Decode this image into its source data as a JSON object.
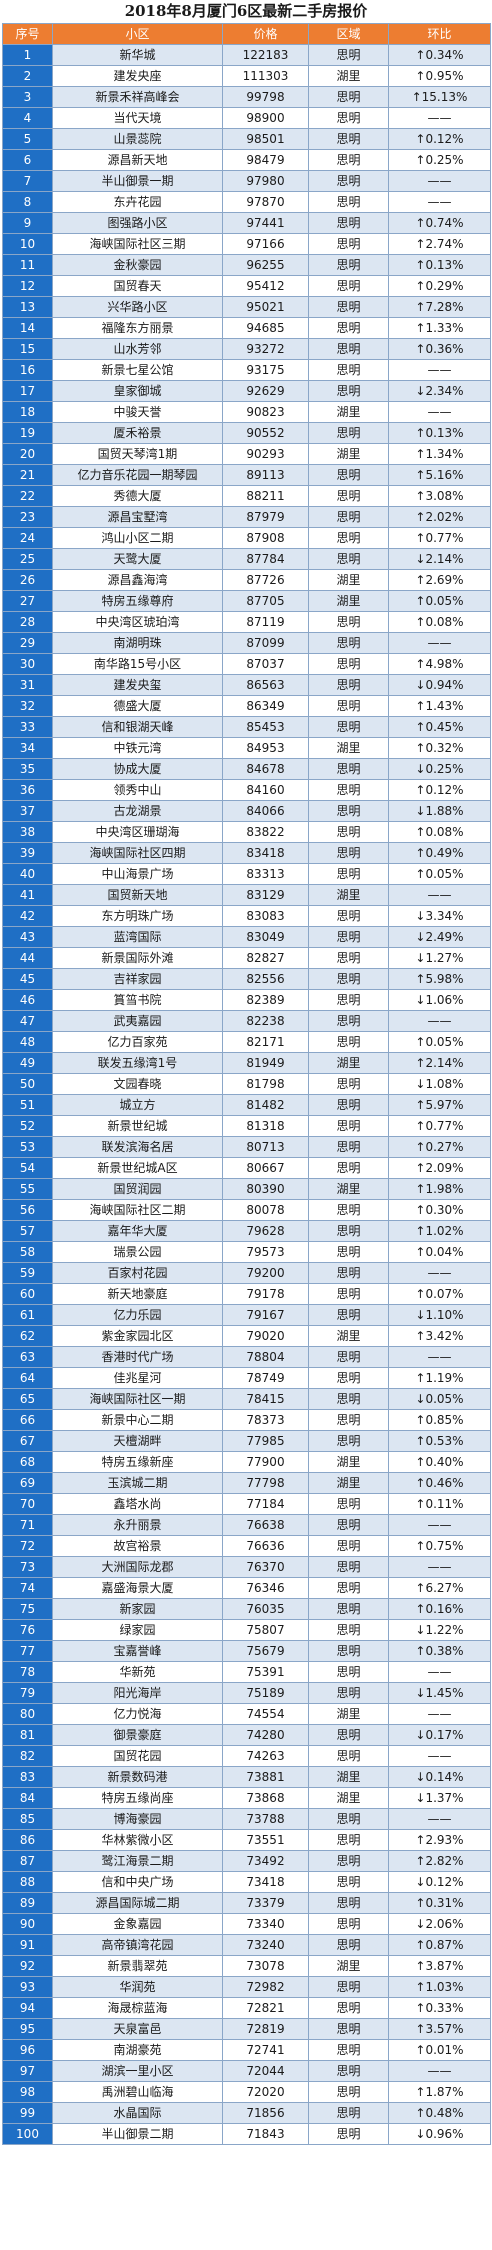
{
  "title": "2018年8月厦门6区最新二手房报价",
  "headers": [
    "序号",
    "小区",
    "价格",
    "区域",
    "环比"
  ],
  "rows": [
    [
      "1",
      "新华城",
      "122183",
      "思明",
      "↑0.34%"
    ],
    [
      "2",
      "建发央座",
      "111303",
      "湖里",
      "↑0.95%"
    ],
    [
      "3",
      "新景禾祥高峰会",
      "99798",
      "思明",
      "↑15.13%"
    ],
    [
      "4",
      "当代天境",
      "98900",
      "思明",
      "——"
    ],
    [
      "5",
      "山景蕊院",
      "98501",
      "思明",
      "↑0.12%"
    ],
    [
      "6",
      "源昌新天地",
      "98479",
      "思明",
      "↑0.25%"
    ],
    [
      "7",
      "半山御景一期",
      "97980",
      "思明",
      "——"
    ],
    [
      "8",
      "东卉花园",
      "97870",
      "思明",
      "——"
    ],
    [
      "9",
      "图强路小区",
      "97441",
      "思明",
      "↑0.74%"
    ],
    [
      "10",
      "海峡国际社区三期",
      "97166",
      "思明",
      "↑2.74%"
    ],
    [
      "11",
      "金秋豪园",
      "96255",
      "思明",
      "↑0.13%"
    ],
    [
      "12",
      "国贸春天",
      "95412",
      "思明",
      "↑0.29%"
    ],
    [
      "13",
      "兴华路小区",
      "95021",
      "思明",
      "↑7.28%"
    ],
    [
      "14",
      "福隆东方丽景",
      "94685",
      "思明",
      "↑1.33%"
    ],
    [
      "15",
      "山水芳邻",
      "93272",
      "思明",
      "↑0.36%"
    ],
    [
      "16",
      "新景七星公馆",
      "93175",
      "思明",
      "——"
    ],
    [
      "17",
      "皇家御城",
      "92629",
      "思明",
      "↓2.34%"
    ],
    [
      "18",
      "中骏天誉",
      "90823",
      "湖里",
      "——"
    ],
    [
      "19",
      "厦禾裕景",
      "90552",
      "思明",
      "↑0.13%"
    ],
    [
      "20",
      "国贸天琴湾1期",
      "90293",
      "湖里",
      "↑1.34%"
    ],
    [
      "21",
      "亿力音乐花园一期琴园",
      "89113",
      "思明",
      "↑5.16%"
    ],
    [
      "22",
      "秀德大厦",
      "88211",
      "思明",
      "↑3.08%"
    ],
    [
      "23",
      "源昌宝墅湾",
      "87979",
      "思明",
      "↑2.02%"
    ],
    [
      "24",
      "鸿山小区二期",
      "87908",
      "思明",
      "↑0.77%"
    ],
    [
      "25",
      "天鹭大厦",
      "87784",
      "思明",
      "↓2.14%"
    ],
    [
      "26",
      "源昌鑫海湾",
      "87726",
      "湖里",
      "↑2.69%"
    ],
    [
      "27",
      "特房五缘尊府",
      "87705",
      "湖里",
      "↑0.05%"
    ],
    [
      "28",
      "中央湾区琥珀湾",
      "87119",
      "思明",
      "↑0.08%"
    ],
    [
      "29",
      "南湖明珠",
      "87099",
      "思明",
      "——"
    ],
    [
      "30",
      "南华路15号小区",
      "87037",
      "思明",
      "↑4.98%"
    ],
    [
      "31",
      "建发央玺",
      "86563",
      "思明",
      "↓0.94%"
    ],
    [
      "32",
      "德盛大厦",
      "86349",
      "思明",
      "↑1.43%"
    ],
    [
      "33",
      "信和银湖天峰",
      "85453",
      "思明",
      "↑0.45%"
    ],
    [
      "34",
      "中铁元湾",
      "84953",
      "湖里",
      "↑0.32%"
    ],
    [
      "35",
      "协成大厦",
      "84678",
      "思明",
      "↓0.25%"
    ],
    [
      "36",
      "领秀中山",
      "84160",
      "思明",
      "↑0.12%"
    ],
    [
      "37",
      "古龙湖景",
      "84066",
      "思明",
      "↓1.88%"
    ],
    [
      "38",
      "中央湾区珊瑚海",
      "83822",
      "思明",
      "↑0.08%"
    ],
    [
      "39",
      "海峡国际社区四期",
      "83418",
      "思明",
      "↑0.49%"
    ],
    [
      "40",
      "中山海景广场",
      "83313",
      "思明",
      "↑0.05%"
    ],
    [
      "41",
      "国贸新天地",
      "83129",
      "湖里",
      "——"
    ],
    [
      "42",
      "东方明珠广场",
      "83083",
      "思明",
      "↓3.34%"
    ],
    [
      "43",
      "蓝湾国际",
      "83049",
      "思明",
      "↓2.49%"
    ],
    [
      "44",
      "新景国际外滩",
      "82827",
      "思明",
      "↓1.27%"
    ],
    [
      "45",
      "吉祥家园",
      "82556",
      "思明",
      "↑5.98%"
    ],
    [
      "46",
      "篔筜书院",
      "82389",
      "思明",
      "↓1.06%"
    ],
    [
      "47",
      "武夷嘉园",
      "82238",
      "思明",
      "——"
    ],
    [
      "48",
      "亿力百家苑",
      "82171",
      "思明",
      "↑0.05%"
    ],
    [
      "49",
      "联发五缘湾1号",
      "81949",
      "湖里",
      "↑2.14%"
    ],
    [
      "50",
      "文园春晓",
      "81798",
      "思明",
      "↓1.08%"
    ],
    [
      "51",
      "城立方",
      "81482",
      "思明",
      "↑5.97%"
    ],
    [
      "52",
      "新景世纪城",
      "81318",
      "思明",
      "↑0.77%"
    ],
    [
      "53",
      "联发滨海名居",
      "80713",
      "思明",
      "↑0.27%"
    ],
    [
      "54",
      "新景世纪城A区",
      "80667",
      "思明",
      "↑2.09%"
    ],
    [
      "55",
      "国贸润园",
      "80390",
      "湖里",
      "↑1.98%"
    ],
    [
      "56",
      "海峡国际社区二期",
      "80078",
      "思明",
      "↑0.30%"
    ],
    [
      "57",
      "嘉年华大厦",
      "79628",
      "思明",
      "↑1.02%"
    ],
    [
      "58",
      "瑞景公园",
      "79573",
      "思明",
      "↑0.04%"
    ],
    [
      "59",
      "百家村花园",
      "79200",
      "思明",
      "——"
    ],
    [
      "60",
      "新天地豪庭",
      "79178",
      "思明",
      "↑0.07%"
    ],
    [
      "61",
      "亿力乐园",
      "79167",
      "思明",
      "↓1.10%"
    ],
    [
      "62",
      "紫金家园北区",
      "79020",
      "湖里",
      "↑3.42%"
    ],
    [
      "63",
      "香港时代广场",
      "78804",
      "思明",
      "——"
    ],
    [
      "64",
      "佳兆星河",
      "78749",
      "思明",
      "↑1.19%"
    ],
    [
      "65",
      "海峡国际社区一期",
      "78415",
      "思明",
      "↓0.05%"
    ],
    [
      "66",
      "新景中心二期",
      "78373",
      "思明",
      "↑0.85%"
    ],
    [
      "67",
      "天檀湖畔",
      "77985",
      "思明",
      "↑0.53%"
    ],
    [
      "68",
      "特房五缘新座",
      "77900",
      "湖里",
      "↑0.40%"
    ],
    [
      "69",
      "玉滨城二期",
      "77798",
      "湖里",
      "↑0.46%"
    ],
    [
      "70",
      "鑫塔水尚",
      "77184",
      "思明",
      "↑0.11%"
    ],
    [
      "71",
      "永升丽景",
      "76638",
      "思明",
      "——"
    ],
    [
      "72",
      "故宫裕景",
      "76636",
      "思明",
      "↑0.75%"
    ],
    [
      "73",
      "大洲国际龙郡",
      "76370",
      "思明",
      "——"
    ],
    [
      "74",
      "嘉盛海景大厦",
      "76346",
      "思明",
      "↑6.27%"
    ],
    [
      "75",
      "新家园",
      "76035",
      "思明",
      "↑0.16%"
    ],
    [
      "76",
      "绿家园",
      "75807",
      "思明",
      "↓1.22%"
    ],
    [
      "77",
      "宝嘉誉峰",
      "75679",
      "思明",
      "↑0.38%"
    ],
    [
      "78",
      "华新苑",
      "75391",
      "思明",
      "——"
    ],
    [
      "79",
      "阳光海岸",
      "75189",
      "思明",
      "↓1.45%"
    ],
    [
      "80",
      "亿力悦海",
      "74554",
      "湖里",
      "——"
    ],
    [
      "81",
      "御景豪庭",
      "74280",
      "思明",
      "↓0.17%"
    ],
    [
      "82",
      "国贸花园",
      "74263",
      "思明",
      "——"
    ],
    [
      "83",
      "新景数码港",
      "73881",
      "湖里",
      "↓0.14%"
    ],
    [
      "84",
      "特房五缘尚座",
      "73868",
      "湖里",
      "↓1.37%"
    ],
    [
      "85",
      "博海豪园",
      "73788",
      "思明",
      "——"
    ],
    [
      "86",
      "华林紫微小区",
      "73551",
      "思明",
      "↑2.93%"
    ],
    [
      "87",
      "鹭江海景二期",
      "73492",
      "思明",
      "↑2.82%"
    ],
    [
      "88",
      "信和中央广场",
      "73418",
      "思明",
      "↓0.12%"
    ],
    [
      "89",
      "源昌国际城二期",
      "73379",
      "思明",
      "↑0.31%"
    ],
    [
      "90",
      "金象嘉园",
      "73340",
      "思明",
      "↓2.06%"
    ],
    [
      "91",
      "高帝镇湾花园",
      "73240",
      "思明",
      "↑0.87%"
    ],
    [
      "92",
      "新景翡翠苑",
      "73078",
      "湖里",
      "↑3.87%"
    ],
    [
      "93",
      "华润苑",
      "72982",
      "思明",
      "↑1.03%"
    ],
    [
      "94",
      "海晟棕蓝海",
      "72821",
      "思明",
      "↑0.33%"
    ],
    [
      "95",
      "天泉富邑",
      "72819",
      "思明",
      "↑3.57%"
    ],
    [
      "96",
      "南湖豪苑",
      "72741",
      "思明",
      "↑0.01%"
    ],
    [
      "97",
      "湖滨一里小区",
      "72044",
      "思明",
      "——"
    ],
    [
      "98",
      "禹洲碧山临海",
      "72020",
      "思明",
      "↑1.87%"
    ],
    [
      "99",
      "水晶国际",
      "71856",
      "思明",
      "↑0.48%"
    ],
    [
      "100",
      "半山御景二期",
      "71843",
      "思明",
      "↓0.96%"
    ]
  ]
}
